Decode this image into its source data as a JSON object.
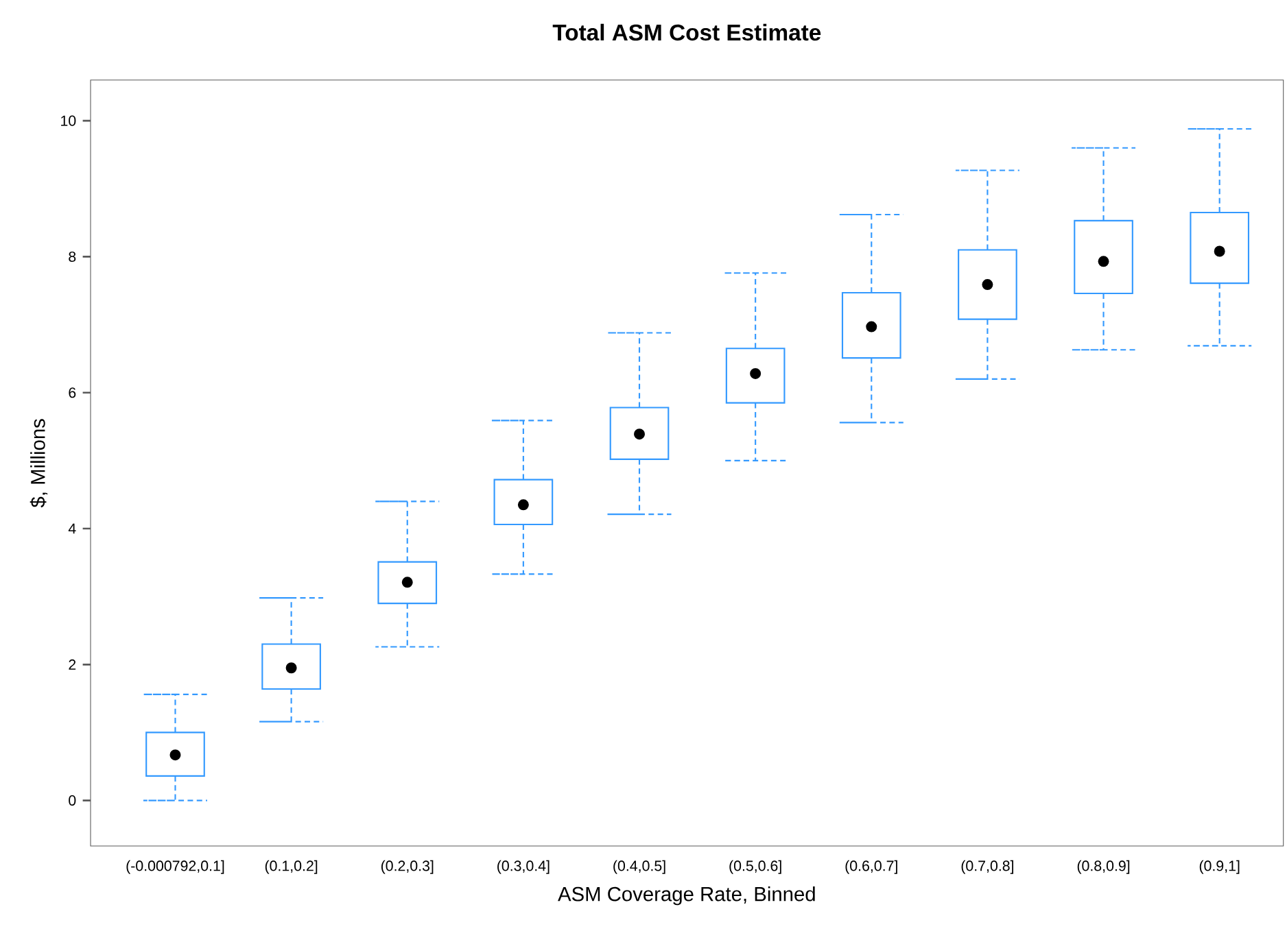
{
  "chart_data": {
    "type": "box",
    "title": "Total ASM Cost Estimate",
    "xlabel": "ASM Coverage Rate, Binned",
    "ylabel": "$, Millions",
    "categories": [
      "(-0.000792,0.1]",
      "(0.1,0.2]",
      "(0.2,0.3]",
      "(0.3,0.4]",
      "(0.4,0.5]",
      "(0.5,0.6]",
      "(0.6,0.7]",
      "(0.7,0.8]",
      "(0.8,0.9]",
      "(0.9,1]"
    ],
    "color": "#3399ff",
    "boxes": [
      {
        "low": 0.0,
        "q1": 0.36,
        "median": 0.67,
        "q3": 1.0,
        "high": 1.56
      },
      {
        "low": 1.16,
        "q1": 1.64,
        "median": 1.95,
        "q3": 2.3,
        "high": 2.98
      },
      {
        "low": 2.26,
        "q1": 2.9,
        "median": 3.21,
        "q3": 3.51,
        "high": 4.4
      },
      {
        "low": 3.33,
        "q1": 4.06,
        "median": 4.35,
        "q3": 4.72,
        "high": 5.59
      },
      {
        "low": 4.21,
        "q1": 5.02,
        "median": 5.39,
        "q3": 5.78,
        "high": 6.88
      },
      {
        "low": 5.0,
        "q1": 5.85,
        "median": 6.28,
        "q3": 6.65,
        "high": 7.76
      },
      {
        "low": 5.56,
        "q1": 6.51,
        "median": 6.97,
        "q3": 7.47,
        "high": 8.62
      },
      {
        "low": 6.2,
        "q1": 7.08,
        "median": 7.59,
        "q3": 8.1,
        "high": 9.27
      },
      {
        "low": 6.63,
        "q1": 7.46,
        "median": 7.93,
        "q3": 8.53,
        "high": 9.6
      },
      {
        "low": 6.69,
        "q1": 7.61,
        "median": 8.08,
        "q3": 8.65,
        "high": 9.88
      }
    ],
    "ylim": [
      -0.67,
      10.6
    ],
    "yticks": [
      0,
      2,
      4,
      6,
      8,
      10
    ]
  }
}
